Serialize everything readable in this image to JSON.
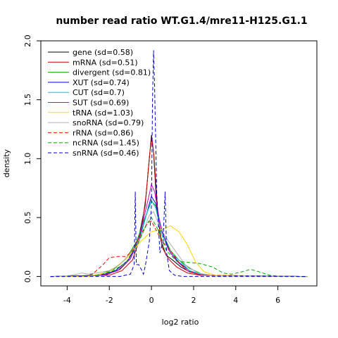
{
  "chart_data": {
    "type": "line",
    "title": "number read ratio WT.G1.4/mre11-H125.G1.1",
    "xlabel": "log2 ratio",
    "ylabel": "density",
    "xlim": [
      -5,
      7.5
    ],
    "ylim": [
      0,
      2.0
    ],
    "x_ticks": [
      -4,
      -2,
      0,
      2,
      4,
      6
    ],
    "y_ticks": [
      0.0,
      0.5,
      1.0,
      1.5,
      2.0
    ],
    "x_tick_labels": [
      "-4",
      "-2",
      "0",
      "2",
      "4",
      "6"
    ],
    "y_tick_labels": [
      "0.0",
      "0.5",
      "1.0",
      "1.5",
      "2.0"
    ],
    "grid": false,
    "legend_position": "top-left",
    "series": [
      {
        "name": "gene (sd=0.58)",
        "color": "#000000",
        "dash": "solid",
        "points": [
          [
            -4.8,
            0
          ],
          [
            -2.2,
            0.01
          ],
          [
            -1.5,
            0.06
          ],
          [
            -1.0,
            0.15
          ],
          [
            -0.6,
            0.33
          ],
          [
            -0.3,
            0.6
          ],
          [
            -0.1,
            1.0
          ],
          [
            0.0,
            1.2
          ],
          [
            0.1,
            1.05
          ],
          [
            0.25,
            0.6
          ],
          [
            0.45,
            0.3
          ],
          [
            0.7,
            0.18
          ],
          [
            1.0,
            0.14
          ],
          [
            1.4,
            0.08
          ],
          [
            1.8,
            0.04
          ],
          [
            2.4,
            0.01
          ],
          [
            7.4,
            0
          ]
        ]
      },
      {
        "name": "mRNA (sd=0.51)",
        "color": "#cc0000",
        "dash": "solid",
        "points": [
          [
            -4.8,
            0
          ],
          [
            -2.0,
            0.01
          ],
          [
            -1.4,
            0.05
          ],
          [
            -0.9,
            0.14
          ],
          [
            -0.5,
            0.35
          ],
          [
            -0.25,
            0.7
          ],
          [
            -0.08,
            1.05
          ],
          [
            0.02,
            1.18
          ],
          [
            0.12,
            1.02
          ],
          [
            0.3,
            0.55
          ],
          [
            0.5,
            0.25
          ],
          [
            0.8,
            0.15
          ],
          [
            1.2,
            0.08
          ],
          [
            1.7,
            0.03
          ],
          [
            2.3,
            0.01
          ],
          [
            7.4,
            0
          ]
        ]
      },
      {
        "name": "divergent (sd=0.81)",
        "color": "#00aa00",
        "dash": "solid",
        "points": [
          [
            -4.8,
            0
          ],
          [
            -2.6,
            0.01
          ],
          [
            -1.8,
            0.06
          ],
          [
            -1.2,
            0.15
          ],
          [
            -0.7,
            0.3
          ],
          [
            -0.3,
            0.5
          ],
          [
            0.0,
            0.64
          ],
          [
            0.2,
            0.6
          ],
          [
            0.5,
            0.38
          ],
          [
            0.9,
            0.22
          ],
          [
            1.3,
            0.14
          ],
          [
            1.8,
            0.07
          ],
          [
            2.4,
            0.02
          ],
          [
            3.0,
            0.005
          ],
          [
            7.4,
            0
          ]
        ]
      },
      {
        "name": "XUT (sd=0.74)",
        "color": "#0000cc",
        "dash": "solid",
        "points": [
          [
            -4.8,
            0
          ],
          [
            -2.4,
            0.01
          ],
          [
            -1.7,
            0.05
          ],
          [
            -1.1,
            0.14
          ],
          [
            -0.6,
            0.3
          ],
          [
            -0.25,
            0.52
          ],
          [
            0.0,
            0.68
          ],
          [
            0.2,
            0.62
          ],
          [
            0.5,
            0.38
          ],
          [
            0.9,
            0.2
          ],
          [
            1.3,
            0.12
          ],
          [
            1.8,
            0.05
          ],
          [
            2.5,
            0.01
          ],
          [
            7.4,
            0
          ]
        ]
      },
      {
        "name": "CUT (sd=0.7)",
        "color": "#00cccc",
        "dash": "solid",
        "points": [
          [
            -4.8,
            0
          ],
          [
            -2.3,
            0.01
          ],
          [
            -1.6,
            0.05
          ],
          [
            -1.0,
            0.15
          ],
          [
            -0.55,
            0.32
          ],
          [
            -0.2,
            0.55
          ],
          [
            0.02,
            0.64
          ],
          [
            0.2,
            0.58
          ],
          [
            0.5,
            0.35
          ],
          [
            0.9,
            0.2
          ],
          [
            1.3,
            0.14
          ],
          [
            1.8,
            0.05
          ],
          [
            2.5,
            0.01
          ],
          [
            7.4,
            0
          ]
        ]
      },
      {
        "name": "SUT (sd=0.69)",
        "color": "#cc00cc",
        "dash": "solid",
        "points": [
          [
            -4.8,
            0
          ],
          [
            -2.3,
            0.01
          ],
          [
            -1.6,
            0.05
          ],
          [
            -1.0,
            0.15
          ],
          [
            -0.55,
            0.35
          ],
          [
            -0.2,
            0.62
          ],
          [
            0.0,
            0.78
          ],
          [
            0.15,
            0.72
          ],
          [
            0.4,
            0.45
          ],
          [
            0.8,
            0.23
          ],
          [
            1.2,
            0.13
          ],
          [
            1.7,
            0.05
          ],
          [
            2.4,
            0.01
          ],
          [
            7.4,
            0
          ]
        ]
      },
      {
        "name": "tRNA (sd=1.03)",
        "color": "#ffd700",
        "dash": "solid",
        "points": [
          [
            -4.8,
            0
          ],
          [
            -3.0,
            0.0
          ],
          [
            -2.0,
            0.04
          ],
          [
            -1.2,
            0.15
          ],
          [
            -0.5,
            0.3
          ],
          [
            0.0,
            0.38
          ],
          [
            0.5,
            0.4
          ],
          [
            0.9,
            0.43
          ],
          [
            1.3,
            0.38
          ],
          [
            1.7,
            0.27
          ],
          [
            2.1,
            0.12
          ],
          [
            2.5,
            0.04
          ],
          [
            3.0,
            0.01
          ],
          [
            7.4,
            0
          ]
        ]
      },
      {
        "name": "snoRNA (sd=0.79)",
        "color": "#b0b0b0",
        "dash": "solid",
        "points": [
          [
            -4.8,
            0
          ],
          [
            -4.0,
            0.005
          ],
          [
            -3.5,
            0.02
          ],
          [
            -3.3,
            0.03
          ],
          [
            -3.0,
            0.02
          ],
          [
            -2.6,
            0.03
          ],
          [
            -2.0,
            0.05
          ],
          [
            -1.5,
            0.1
          ],
          [
            -1.0,
            0.2
          ],
          [
            -0.5,
            0.33
          ],
          [
            -0.1,
            0.52
          ],
          [
            0.1,
            0.55
          ],
          [
            0.4,
            0.42
          ],
          [
            0.8,
            0.3
          ],
          [
            1.2,
            0.2
          ],
          [
            1.6,
            0.1
          ],
          [
            2.2,
            0.03
          ],
          [
            3.0,
            0.005
          ],
          [
            7.4,
            0
          ]
        ]
      },
      {
        "name": "rRNA (sd=0.86)",
        "color": "#ff0000",
        "dash": "5,3",
        "points": [
          [
            -4.8,
            0
          ],
          [
            -3.3,
            0.0
          ],
          [
            -2.8,
            0.02
          ],
          [
            -2.3,
            0.1
          ],
          [
            -2.0,
            0.16
          ],
          [
            -1.6,
            0.17
          ],
          [
            -1.2,
            0.17
          ],
          [
            -0.9,
            0.22
          ],
          [
            -0.5,
            0.36
          ],
          [
            -0.15,
            0.46
          ],
          [
            0.0,
            0.47
          ],
          [
            0.2,
            0.4
          ],
          [
            0.5,
            0.3
          ],
          [
            0.9,
            0.22
          ],
          [
            1.3,
            0.12
          ],
          [
            1.7,
            0.05
          ],
          [
            2.3,
            0.01
          ],
          [
            7.4,
            0
          ]
        ]
      },
      {
        "name": "ncRNA (sd=1.45)",
        "color": "#00aa00",
        "dash": "5,3",
        "points": [
          [
            -4.8,
            0
          ],
          [
            -2.5,
            0.01
          ],
          [
            -1.8,
            0.05
          ],
          [
            -1.2,
            0.12
          ],
          [
            -0.6,
            0.3
          ],
          [
            -0.2,
            0.45
          ],
          [
            0.0,
            0.5
          ],
          [
            0.3,
            0.4
          ],
          [
            0.7,
            0.22
          ],
          [
            1.2,
            0.13
          ],
          [
            1.7,
            0.12
          ],
          [
            2.3,
            0.11
          ],
          [
            2.9,
            0.08
          ],
          [
            3.4,
            0.03
          ],
          [
            3.8,
            0.02
          ],
          [
            4.3,
            0.04
          ],
          [
            4.7,
            0.06
          ],
          [
            5.1,
            0.04
          ],
          [
            5.6,
            0.01
          ],
          [
            6.2,
            0
          ],
          [
            7.4,
            0
          ]
        ]
      },
      {
        "name": "snRNA (sd=0.46)",
        "color": "#0000cc",
        "dash": "5,3",
        "points": [
          [
            -4.8,
            0
          ],
          [
            -1.5,
            0.0
          ],
          [
            -1.0,
            0.02
          ],
          [
            -0.82,
            0.1
          ],
          [
            -0.77,
            0.72
          ],
          [
            -0.72,
            0.1
          ],
          [
            -0.6,
            0.1
          ],
          [
            -0.45,
            0.05
          ],
          [
            -0.38,
            0.02
          ],
          [
            -0.28,
            0.1
          ],
          [
            -0.1,
            0.3
          ],
          [
            0.0,
            0.6
          ],
          [
            0.05,
            1.5
          ],
          [
            0.1,
            1.92
          ],
          [
            0.15,
            1.6
          ],
          [
            0.25,
            0.7
          ],
          [
            0.4,
            0.2
          ],
          [
            0.55,
            0.3
          ],
          [
            0.65,
            0.72
          ],
          [
            0.72,
            0.2
          ],
          [
            0.85,
            0.05
          ],
          [
            1.1,
            0.01
          ],
          [
            1.5,
            0.0
          ],
          [
            7.4,
            0
          ]
        ]
      }
    ]
  }
}
